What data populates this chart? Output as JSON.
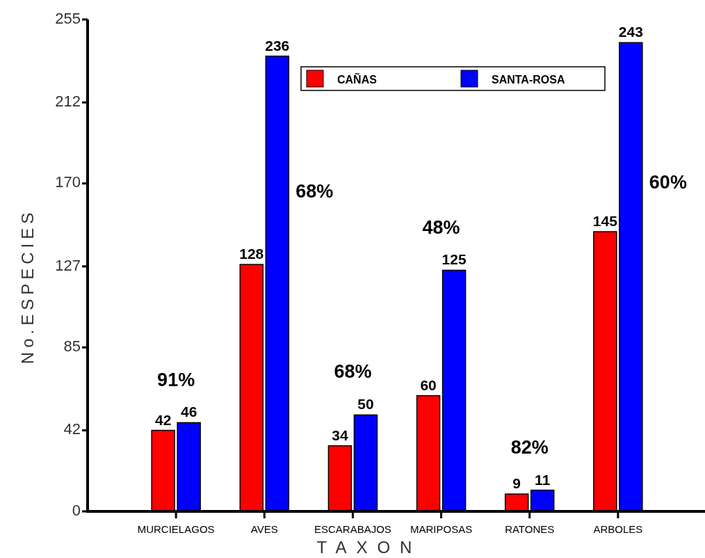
{
  "chart_data": {
    "type": "bar",
    "xlabel": "TAXON",
    "ylabel": "No.ESPECIES",
    "categories": [
      "MURCIELAGOS",
      "AVES",
      "ESCARABAJOS",
      "MARIPOSAS",
      "RATONES",
      "ARBOLES"
    ],
    "series": [
      {
        "name": "CAÑAS",
        "color": "#ff0000",
        "values": [
          42,
          128,
          34,
          60,
          9,
          145
        ]
      },
      {
        "name": "SANTA-ROSA",
        "color": "#0000ff",
        "values": [
          46,
          236,
          50,
          125,
          11,
          243
        ]
      }
    ],
    "ylim": [
      0,
      255
    ],
    "yticks": [
      0,
      42,
      85,
      127,
      170,
      212,
      255
    ],
    "data_labels": true,
    "legend": "top right",
    "grid": false,
    "annotations": [
      "91%",
      "68%",
      "68%",
      "48%",
      "82%",
      "60%"
    ]
  }
}
